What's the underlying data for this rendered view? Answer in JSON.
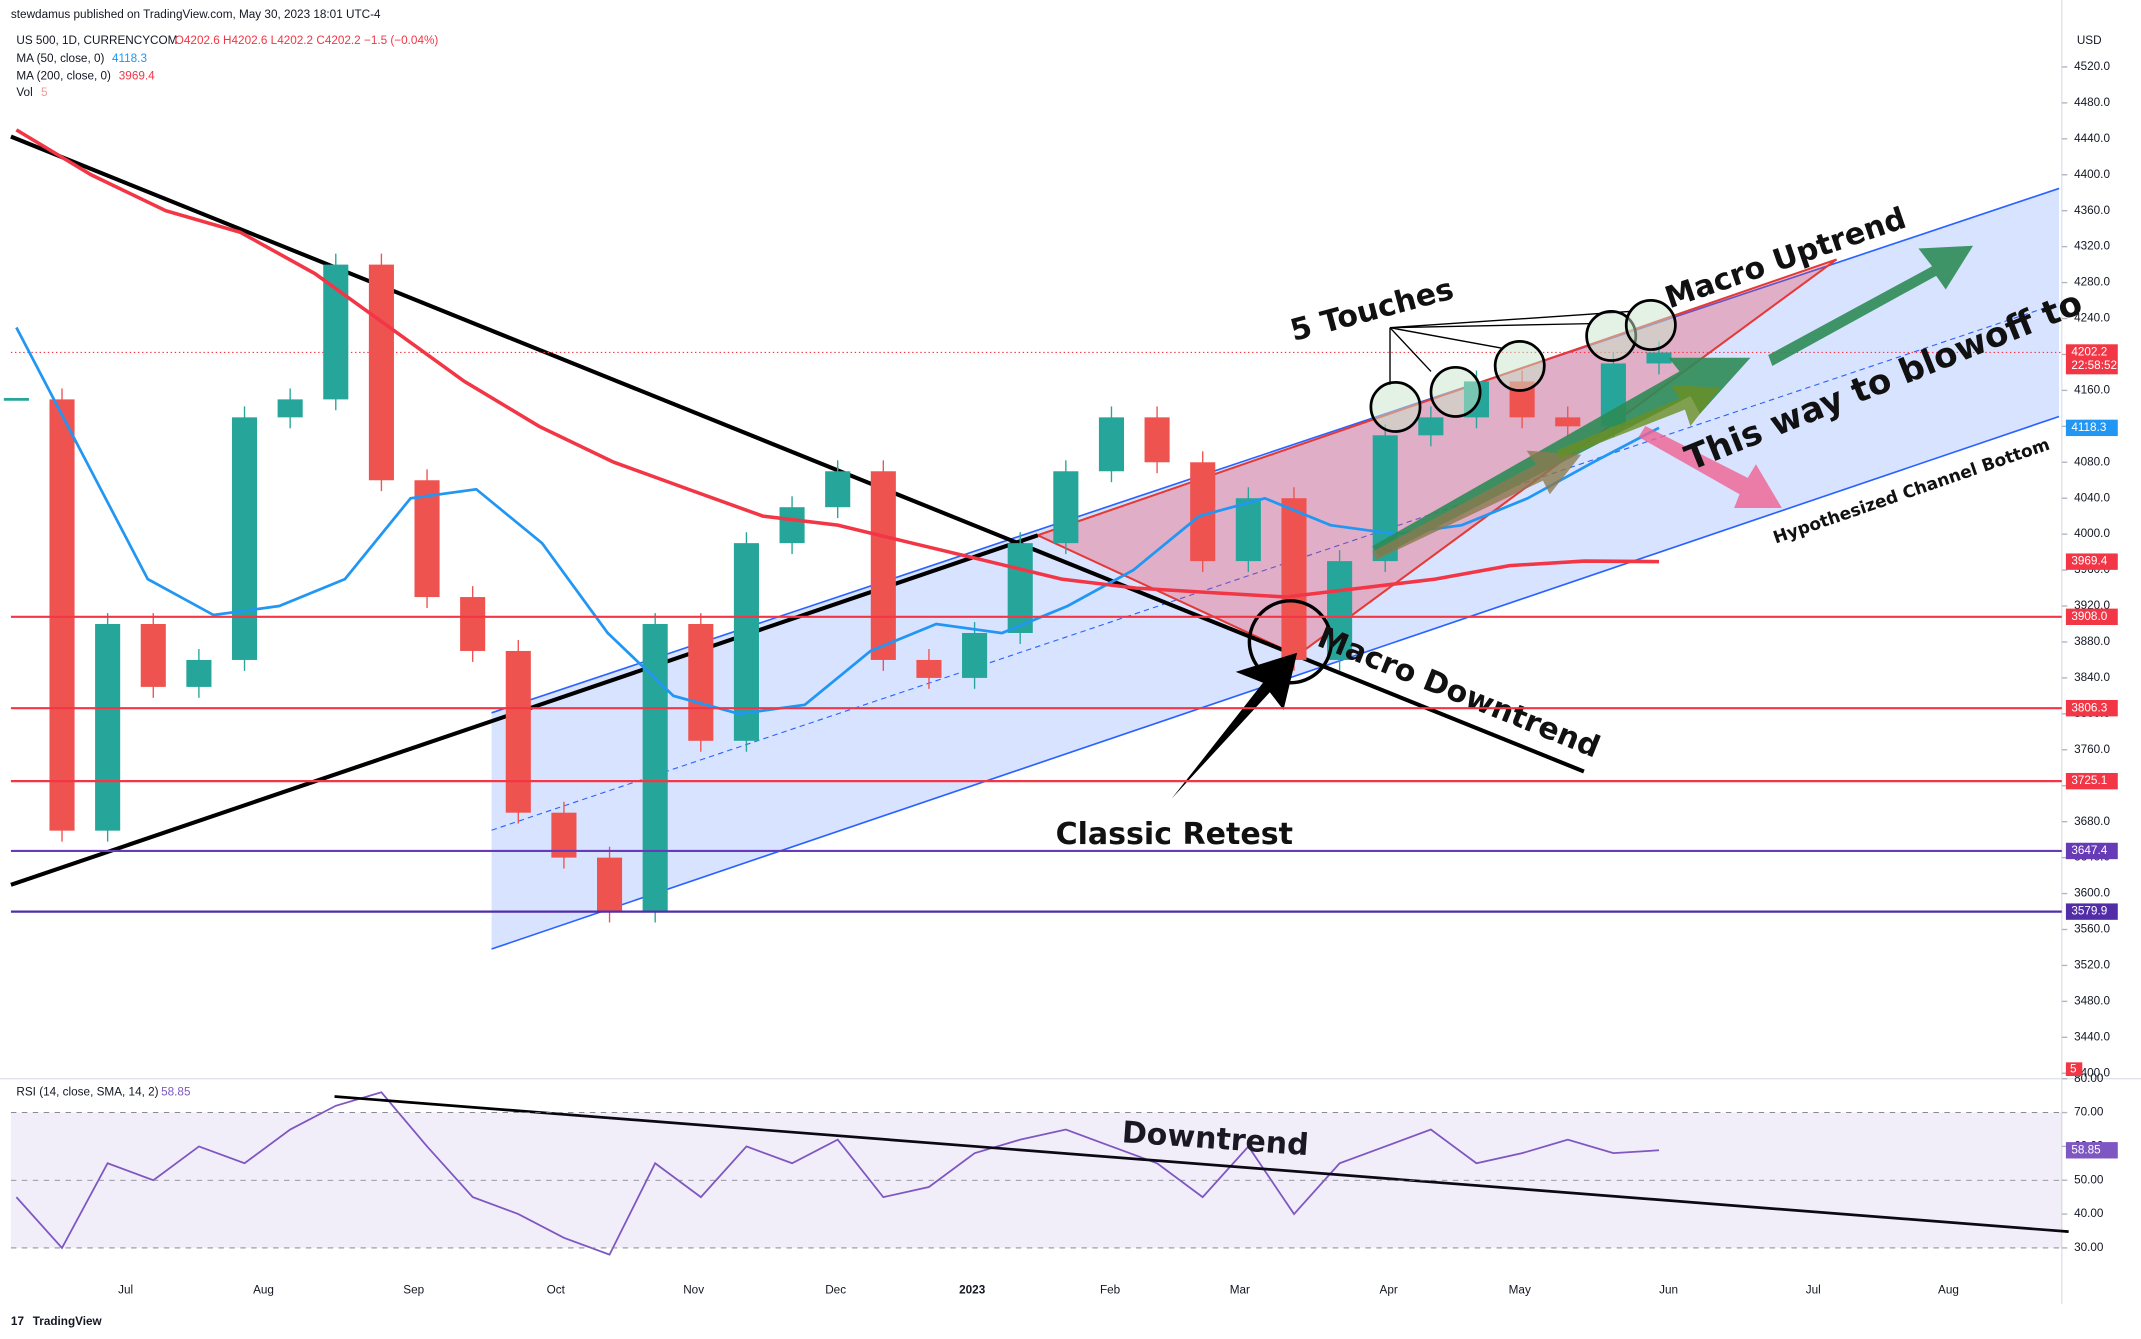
{
  "header": {
    "publisher": "stewdamus published on TradingView.com, May 30, 2023 18:01 UTC-4",
    "footer": "TradingView"
  },
  "chart_data": {
    "type": "candlestick",
    "legend": {
      "symbol": "US 500, 1D, CURRENCYCOM",
      "ohlc": "O4202.6 H4202.6 L4202.2 C4202.2 −1.5 (−0.04%)",
      "ma50": "MA (50, close, 0)",
      "ma50_value": "4118.3",
      "ma200": "MA (200, close, 0)",
      "ma200_value": "3969.4",
      "vol": "Vol",
      "vol_value": 5
    },
    "currency": "USD",
    "time_labels": [
      "Jul",
      "Aug",
      "Sep",
      "Oct",
      "Nov",
      "Dec",
      "2023",
      "Feb",
      "Mar",
      "Apr",
      "May",
      "Jun",
      "Jul",
      "Aug"
    ],
    "ylim": [
      3393.9,
      4594.5
    ],
    "yticks": [
      {
        "value": 3400,
        "label": "3400.0"
      },
      {
        "value": 3440,
        "label": "3440.0"
      },
      {
        "value": 3480,
        "label": "3480.0"
      },
      {
        "value": 3520,
        "label": "3520.0"
      },
      {
        "value": 3560,
        "label": "3560.0"
      },
      {
        "value": 3600,
        "label": "3600.0"
      },
      {
        "value": 3640,
        "label": "3640.0"
      },
      {
        "value": 3680,
        "label": "3680.0"
      },
      {
        "value": 3720,
        "label": "3720.0"
      },
      {
        "value": 3760,
        "label": "3760.0"
      },
      {
        "value": 3800,
        "label": "3800.0"
      },
      {
        "value": 3840,
        "label": "3840.0"
      },
      {
        "value": 3880,
        "label": "3880.0"
      },
      {
        "value": 3920,
        "label": "3920.0"
      },
      {
        "value": 3960,
        "label": "3960.0"
      },
      {
        "value": 4000,
        "label": "4000.0"
      },
      {
        "value": 4040,
        "label": "4040.0"
      },
      {
        "value": 4080,
        "label": "4080.0"
      },
      {
        "value": 4120,
        "label": "4120.0"
      },
      {
        "value": 4160,
        "label": "4160.0"
      },
      {
        "value": 4200,
        "label": "4200.0"
      },
      {
        "value": 4240,
        "label": "4240.0"
      },
      {
        "value": 4280,
        "label": "4280.0"
      },
      {
        "value": 4320,
        "label": "4320.0"
      },
      {
        "value": 4360,
        "label": "4360.0"
      },
      {
        "value": 4400,
        "label": "4400.0"
      },
      {
        "value": 4440,
        "label": "4440.0"
      },
      {
        "value": 4480,
        "label": "4480.0"
      },
      {
        "value": 4520,
        "label": "4520.0"
      }
    ],
    "series": [
      {
        "name": "US 500",
        "color": "#26a69a",
        "down_color": "#ef5350",
        "values": [
          4150,
          3670,
          3900,
          3830,
          3860,
          4130,
          4150,
          4300,
          4060,
          3930,
          3870,
          3690,
          3640,
          3580,
          3900,
          3770,
          3990,
          4030,
          4070,
          3860,
          3840,
          3890,
          3990,
          4070,
          4130,
          4080,
          3970,
          4040,
          3860,
          3970,
          4110,
          4130,
          4170,
          4130,
          4120,
          4190,
          4202.2
        ]
      },
      {
        "name": "MA (50, close, 0)",
        "color": "#2196f3",
        "values": [
          4230,
          4090,
          3950,
          3910,
          3920,
          3950,
          4040,
          4050,
          3990,
          3890,
          3820,
          3800,
          3810,
          3870,
          3900,
          3890,
          3920,
          3960,
          4020,
          4040,
          4010,
          4000,
          4010,
          4040,
          4080,
          4118.3
        ]
      },
      {
        "name": "MA (200, close, 0)",
        "color": "#f23645",
        "values": [
          4450,
          4400,
          4360,
          4336,
          4290,
          4230,
          4170,
          4120,
          4080,
          4050,
          4020,
          4010,
          3990,
          3970,
          3950,
          3940,
          3935,
          3930,
          3940,
          3950,
          3965,
          3970,
          3969.4
        ]
      }
    ],
    "levels": [
      {
        "value": 3908,
        "label": "3908.0",
        "color": "#f23645"
      },
      {
        "value": 3806.3,
        "label": "3806.3",
        "color": "#f23645"
      },
      {
        "value": 3725.1,
        "label": "3725.1",
        "color": "#f23645"
      },
      {
        "value": 3647.4,
        "label": "3647.4",
        "color": "#673ab7"
      },
      {
        "value": 3579.9,
        "label": "3579.9",
        "color": "#512da8"
      }
    ],
    "last_price": {
      "value": 4202.2,
      "label": "4202.2",
      "countdown": "22:58:52"
    },
    "ma50_badge": {
      "value": 4118.3,
      "label": "4118.3"
    },
    "ma200_badge": {
      "value": 3969.4,
      "label": "3969.4"
    },
    "annotations": {
      "touches": "5 Touches",
      "uptrend": "Macro Uptrend",
      "blowoff": "This way to blowoff to",
      "channel": "Hypothesized Channel Bottom",
      "downtrend": "Macro Downtrend",
      "retest": "Classic Retest"
    },
    "rsi": {
      "legend": "RSI (14, close, SMA, 14, 2)",
      "value_label": "58.85",
      "color": "#7e57c2",
      "ylim": [
        23.5,
        80
      ],
      "yticks": [
        {
          "value": 30,
          "label": "30.00"
        },
        {
          "value": 40,
          "label": "40.00"
        },
        {
          "value": 50,
          "label": "50.00"
        },
        {
          "value": 60,
          "label": "60.00"
        },
        {
          "value": 70,
          "label": "70.00"
        },
        {
          "value": 80,
          "label": "80.00"
        }
      ],
      "values": [
        45,
        30,
        55,
        50,
        60,
        55,
        65,
        72,
        76,
        60,
        45,
        40,
        33,
        28,
        55,
        45,
        60,
        55,
        62,
        45,
        48,
        58,
        62,
        65,
        60,
        55,
        45,
        60,
        40,
        55,
        60,
        65,
        55,
        58,
        62,
        58,
        58.85
      ],
      "annotation": "Downtrend"
    }
  }
}
